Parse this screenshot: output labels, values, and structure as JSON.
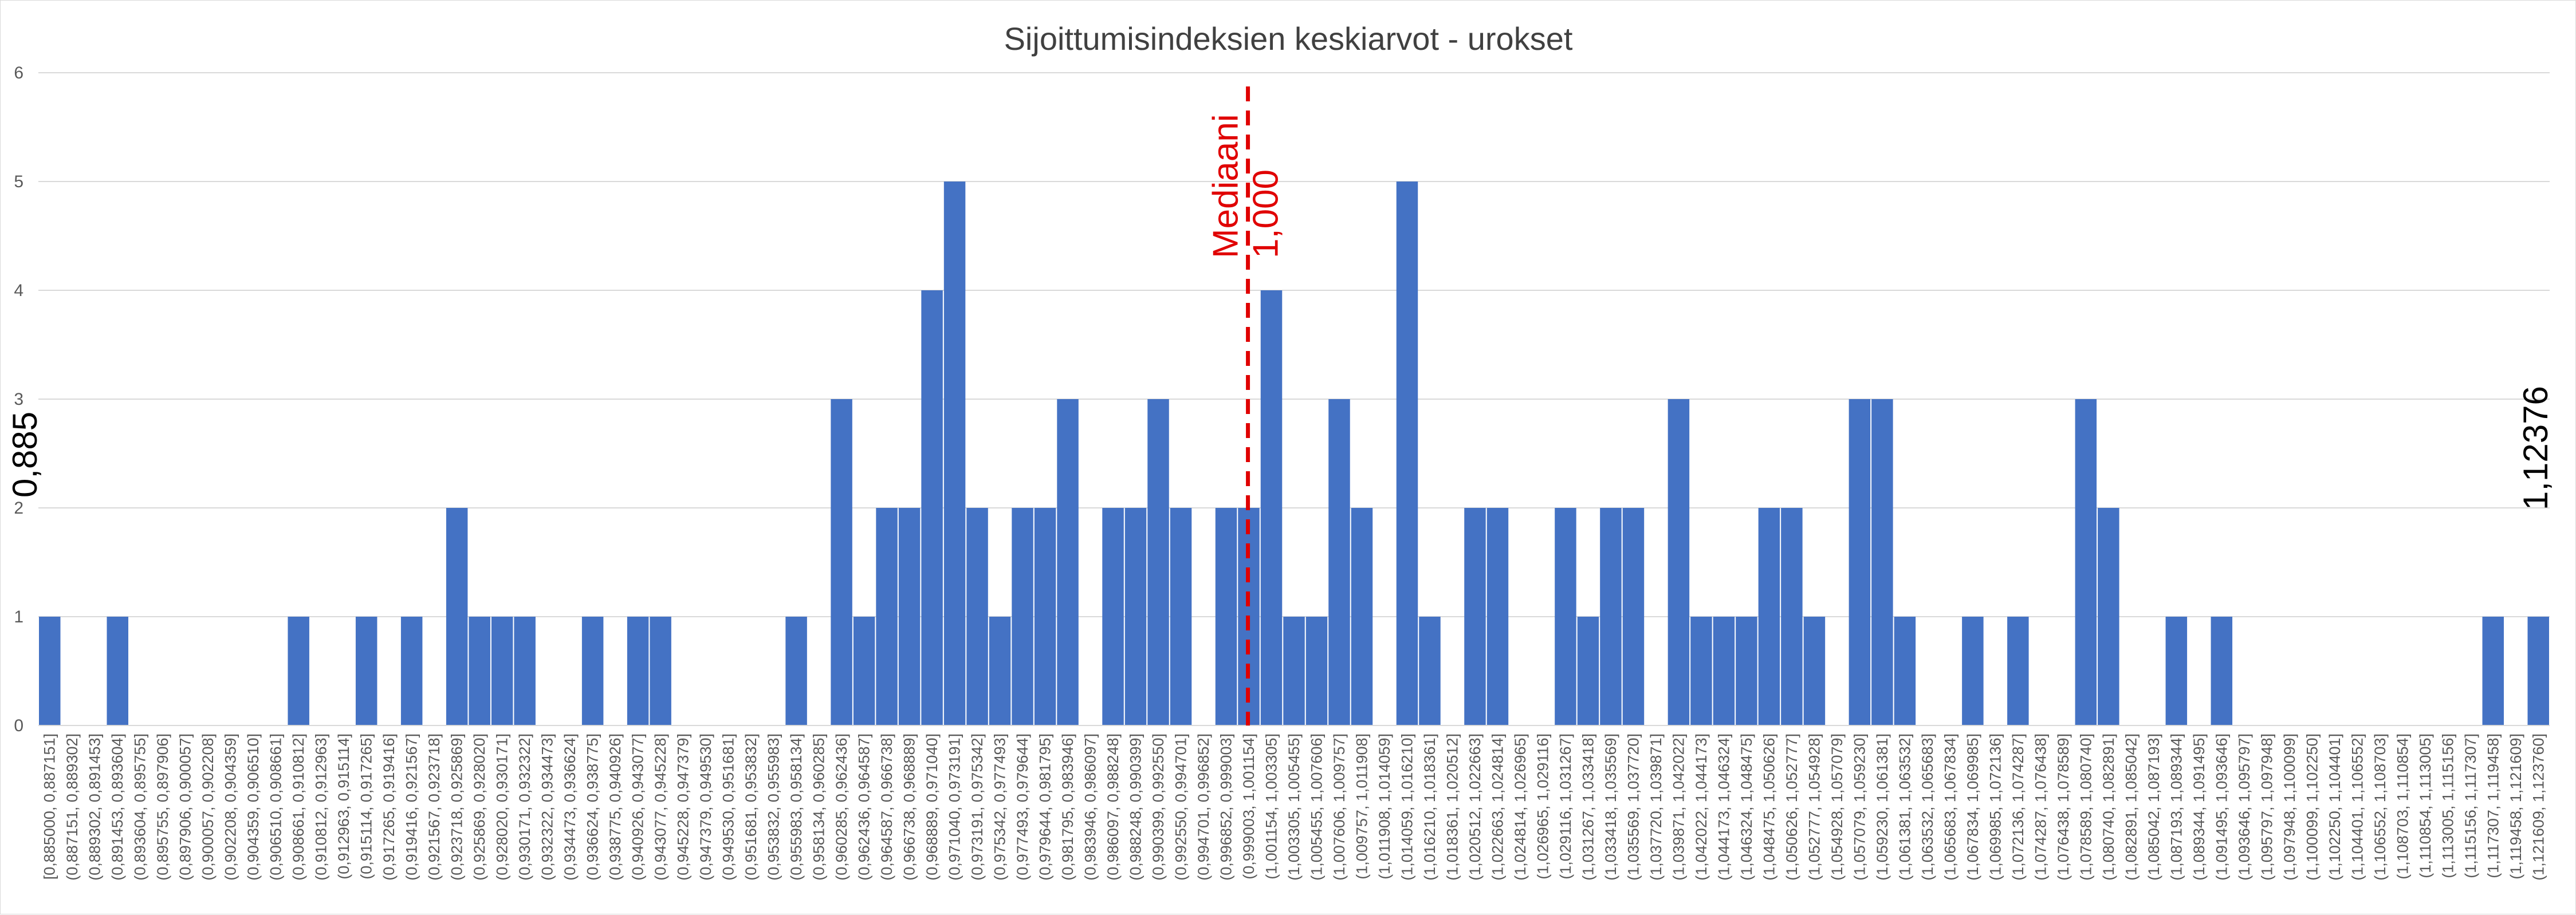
{
  "chart_data": {
    "type": "bar",
    "title": "Sijoittumisindeksien keskiarvot - urokset",
    "xlabel": "",
    "ylabel": "",
    "ylim": [
      0,
      6
    ],
    "yticks": [
      0,
      1,
      2,
      3,
      4,
      5,
      6
    ],
    "grid": true,
    "legend": "none",
    "bar_color": "#4472c4",
    "categories": [
      "[0,885000, 0,887151]",
      "(0,887151, 0,889302]",
      "(0,889302, 0,891453]",
      "(0,891453, 0,893604]",
      "(0,893604, 0,895755]",
      "(0,895755, 0,897906]",
      "(0,897906, 0,900057]",
      "(0,900057, 0,902208]",
      "(0,902208, 0,904359]",
      "(0,904359, 0,906510]",
      "(0,906510, 0,908661]",
      "(0,908661, 0,910812]",
      "(0,910812, 0,912963]",
      "(0,912963, 0,915114]",
      "(0,915114, 0,917265]",
      "(0,917265, 0,919416]",
      "(0,919416, 0,921567]",
      "(0,921567, 0,923718]",
      "(0,923718, 0,925869]",
      "(0,925869, 0,928020]",
      "(0,928020, 0,930171]",
      "(0,930171, 0,932322]",
      "(0,932322, 0,934473]",
      "(0,934473, 0,936624]",
      "(0,936624, 0,938775]",
      "(0,938775, 0,940926]",
      "(0,940926, 0,943077]",
      "(0,943077, 0,945228]",
      "(0,945228, 0,947379]",
      "(0,947379, 0,949530]",
      "(0,949530, 0,951681]",
      "(0,951681, 0,953832]",
      "(0,953832, 0,955983]",
      "(0,955983, 0,958134]",
      "(0,958134, 0,960285]",
      "(0,960285, 0,962436]",
      "(0,962436, 0,964587]",
      "(0,964587, 0,966738]",
      "(0,966738, 0,968889]",
      "(0,968889, 0,971040]",
      "(0,971040, 0,973191]",
      "(0,973191, 0,975342]",
      "(0,975342, 0,977493]",
      "(0,977493, 0,979644]",
      "(0,979644, 0,981795]",
      "(0,981795, 0,983946]",
      "(0,983946, 0,986097]",
      "(0,986097, 0,988248]",
      "(0,988248, 0,990399]",
      "(0,990399, 0,992550]",
      "(0,992550, 0,994701]",
      "(0,994701, 0,996852]",
      "(0,996852, 0,999003]",
      "(0,999003, 1,001154]",
      "(1,001154, 1,003305]",
      "(1,003305, 1,005455]",
      "(1,005455, 1,007606]",
      "(1,007606, 1,009757]",
      "(1,009757, 1,011908]",
      "(1,011908, 1,014059]",
      "(1,014059, 1,016210]",
      "(1,016210, 1,018361]",
      "(1,018361, 1,020512]",
      "(1,020512, 1,022663]",
      "(1,022663, 1,024814]",
      "(1,024814, 1,026965]",
      "(1,026965, 1,029116]",
      "(1,029116, 1,031267]",
      "(1,031267, 1,033418]",
      "(1,033418, 1,035569]",
      "(1,035569, 1,037720]",
      "(1,037720, 1,039871]",
      "(1,039871, 1,042022]",
      "(1,042022, 1,044173]",
      "(1,044173, 1,046324]",
      "(1,046324, 1,048475]",
      "(1,048475, 1,050626]",
      "(1,050626, 1,052777]",
      "(1,052777, 1,054928]",
      "(1,054928, 1,057079]",
      "(1,057079, 1,059230]",
      "(1,059230, 1,061381]",
      "(1,061381, 1,063532]",
      "(1,063532, 1,065683]",
      "(1,065683, 1,067834]",
      "(1,067834, 1,069985]",
      "(1,069985, 1,072136]",
      "(1,072136, 1,074287]",
      "(1,074287, 1,076438]",
      "(1,076438, 1,078589]",
      "(1,078589, 1,080740]",
      "(1,080740, 1,082891]",
      "(1,082891, 1,085042]",
      "(1,085042, 1,087193]",
      "(1,087193, 1,089344]",
      "(1,089344, 1,091495]",
      "(1,091495, 1,093646]",
      "(1,093646, 1,095797]",
      "(1,095797, 1,097948]",
      "(1,097948, 1,100099]",
      "(1,100099, 1,102250]",
      "(1,102250, 1,104401]",
      "(1,104401, 1,106552]",
      "(1,106552, 1,108703]",
      "(1,108703, 1,110854]",
      "(1,110854, 1,113005]",
      "(1,113005, 1,115156]",
      "(1,115156, 1,117307]",
      "(1,117307, 1,119458]",
      "(1,119458, 1,121609]",
      "(1,121609, 1,123760]"
    ],
    "values": [
      1,
      0,
      0,
      1,
      0,
      0,
      0,
      0,
      0,
      0,
      0,
      1,
      0,
      0,
      1,
      0,
      1,
      0,
      2,
      1,
      1,
      1,
      0,
      0,
      1,
      0,
      1,
      1,
      0,
      0,
      0,
      0,
      0,
      1,
      0,
      3,
      1,
      2,
      2,
      4,
      5,
      2,
      1,
      2,
      2,
      3,
      0,
      2,
      2,
      3,
      2,
      0,
      2,
      2,
      4,
      1,
      1,
      3,
      2,
      0,
      5,
      1,
      0,
      2,
      2,
      0,
      0,
      2,
      1,
      2,
      2,
      0,
      3,
      1,
      1,
      1,
      2,
      2,
      1,
      0,
      3,
      3,
      1,
      0,
      0,
      1,
      0,
      1,
      0,
      0,
      3,
      2,
      0,
      0,
      1,
      0,
      1,
      0,
      0,
      0,
      0,
      0,
      0,
      0,
      0,
      0,
      0,
      0,
      1,
      0,
      1
    ],
    "annotations": {
      "median_label": "Mediaani",
      "median_value": "1,000",
      "median_x": 1.0,
      "median_color": "#e00000",
      "min_label": "0,885",
      "max_label": "1,12376"
    }
  }
}
